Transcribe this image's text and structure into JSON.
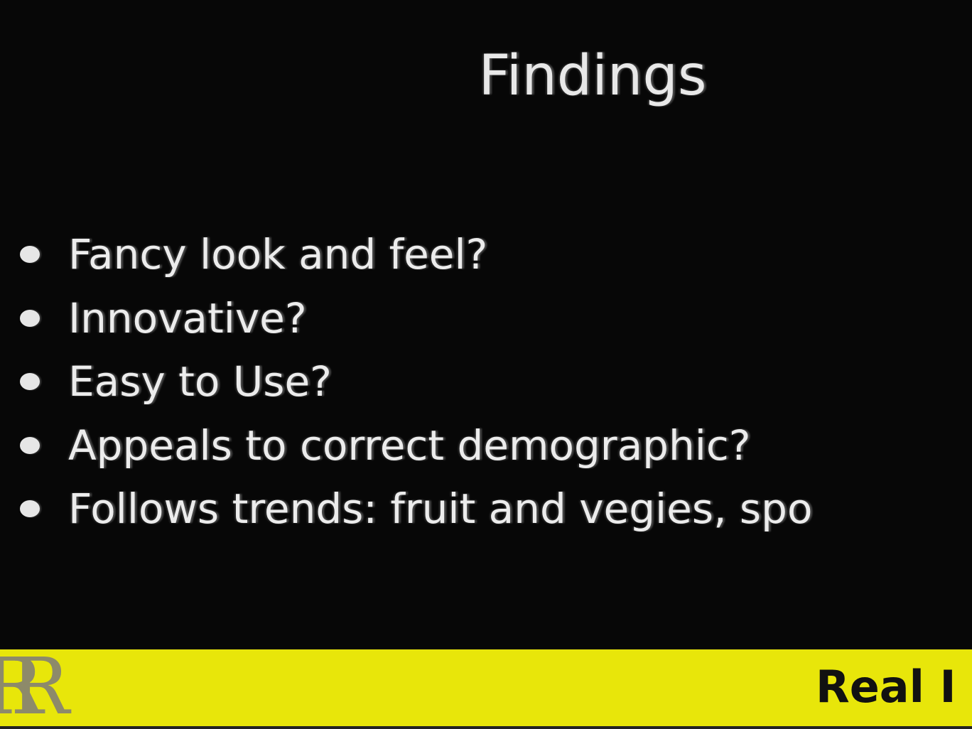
{
  "slide": {
    "title": "Findings",
    "bullets": [
      "Fancy look and feel?",
      "Innovative?",
      "Easy to Use?",
      "Appeals to correct demographic?",
      "Follows trends: fruit and vegies, spo"
    ]
  },
  "footer": {
    "logo_text": "RR",
    "text": "Real I",
    "bar_color": "#e8e60a"
  }
}
